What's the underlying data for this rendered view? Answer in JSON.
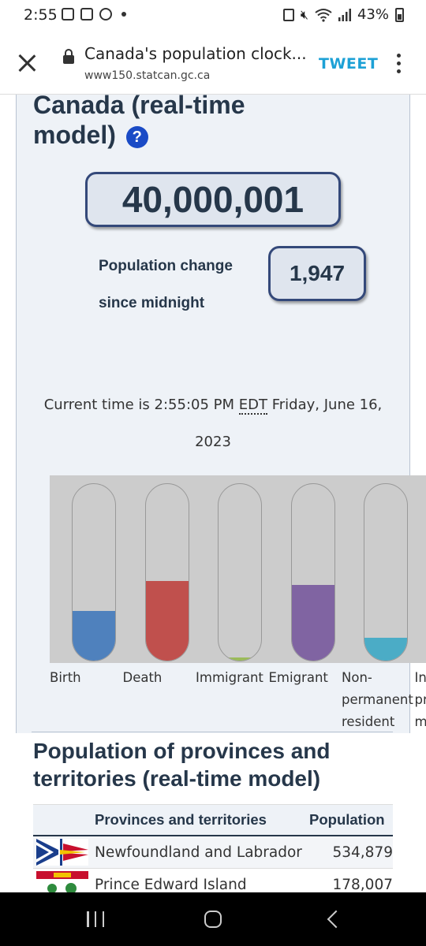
{
  "status_bar": {
    "time": "2:55",
    "battery": "43%",
    "left_icons": [
      "image-icon",
      "calendar-icon",
      "sync-icon",
      "dot-icon"
    ],
    "right_icons": [
      "save-icon",
      "mute-icon",
      "wifi-icon",
      "signal-icon",
      "battery-icon"
    ]
  },
  "browser": {
    "title": "Canada's population clock...",
    "url": "www150.statcan.gc.ca",
    "tweet_label": "TWEET"
  },
  "clock": {
    "heading": "Canada (real-time model)",
    "help_symbol": "?",
    "population": "40,000,001",
    "change_label": "Population change since midnight",
    "change_value": "1,947",
    "time_prefix": "Current time is 2:55:05 PM",
    "time_zone": "EDT",
    "time_suffix": "Friday, June 16, 2023"
  },
  "gauges": [
    {
      "label": "Birth",
      "fill": 0.28,
      "color": "#4f81bd"
    },
    {
      "label": "Death",
      "fill": 0.45,
      "color": "#c0504d"
    },
    {
      "label": "Immigrant",
      "fill": 0.02,
      "color": "#9bbb59"
    },
    {
      "label": "Emigrant",
      "fill": 0.43,
      "color": "#8064a2"
    },
    {
      "label": "Non-permanent resident",
      "fill": 0.13,
      "color": "#4bacc6"
    },
    {
      "label": "Inter-provincial migrant",
      "fill": 0.0,
      "color": "#f79646"
    }
  ],
  "provinces": {
    "heading": "Population of provinces and territories (real-time model)",
    "col_name": "Provinces and territories",
    "col_pop": "Population",
    "rows": [
      {
        "name": "Newfoundland and Labrador",
        "population": "534,879",
        "flag": "newfoundland-flag-icon"
      },
      {
        "name": "Prince Edward Island",
        "population": "178,007",
        "flag": "pei-flag-icon"
      }
    ]
  },
  "colors": {
    "heading": "#26374a",
    "accent": "#1da1d6",
    "panel": "#eef2f7"
  }
}
